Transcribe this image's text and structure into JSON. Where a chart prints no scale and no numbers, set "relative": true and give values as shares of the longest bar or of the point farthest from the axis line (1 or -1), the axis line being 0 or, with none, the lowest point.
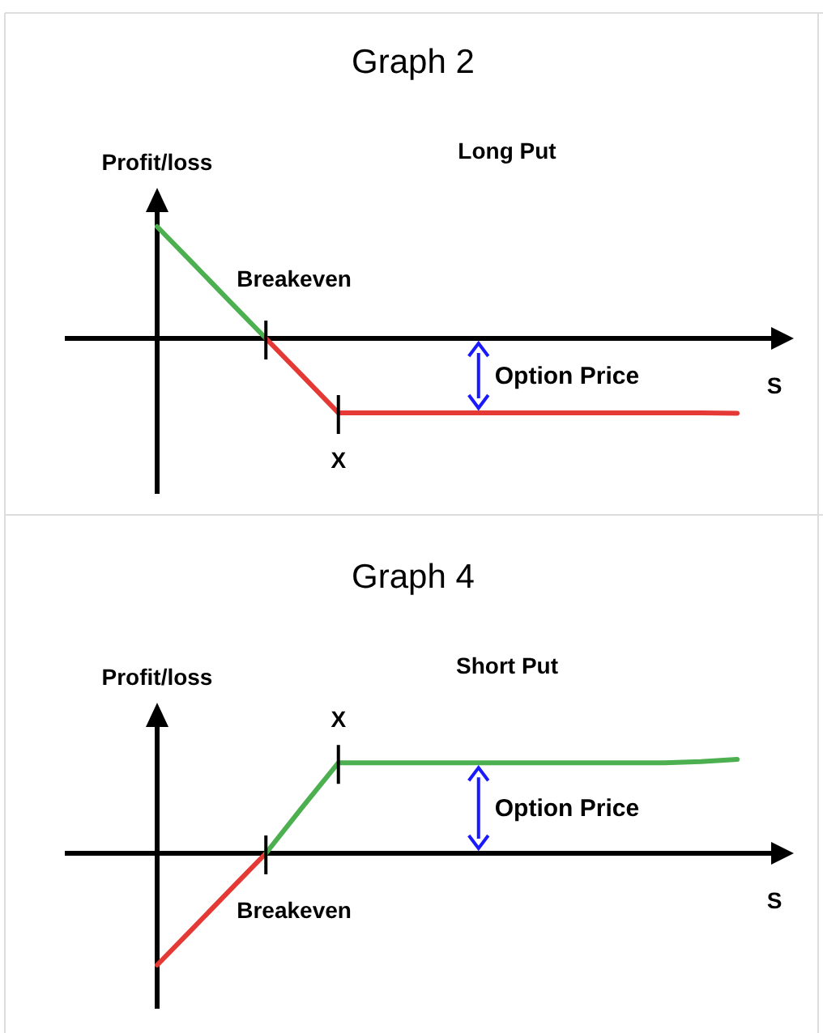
{
  "chart_data": [
    {
      "type": "line",
      "title": "Graph 2",
      "subtitle": "Long Put",
      "xlabel": "S",
      "ylabel": "Profit/loss",
      "relative": true,
      "categories": [
        null,
        null,
        null,
        null,
        null,
        null,
        null,
        null,
        null,
        null,
        null,
        null,
        null,
        null,
        null,
        null,
        null
      ],
      "series": [
        {
          "color": "#4caf50",
          "values": [
            1,
            0.667,
            0.333,
            0,
            null,
            null,
            null,
            null,
            null,
            null,
            null,
            null,
            null,
            null,
            null,
            null,
            null
          ]
        },
        {
          "color": "#e53935",
          "values": [
            null,
            null,
            null,
            0,
            -0.333,
            -0.667,
            -0.667,
            -0.667,
            -0.667,
            -0.667,
            -0.667,
            -0.667,
            -0.667,
            -0.667,
            -0.667,
            -0.667,
            -0.67
          ]
        }
      ],
      "annotations": [
        "Breakeven",
        "X",
        "Option Price"
      ]
    },
    {
      "type": "line",
      "title": "Graph 4",
      "subtitle": "Short Put",
      "xlabel": "S",
      "ylabel": "Profit/loss",
      "relative": true,
      "categories": [
        null,
        null,
        null,
        null,
        null,
        null,
        null,
        null,
        null,
        null,
        null,
        null,
        null,
        null,
        null,
        null,
        null
      ],
      "series": [
        {
          "color": "#e53935",
          "values": [
            -1,
            -0.667,
            -0.333,
            0,
            null,
            null,
            null,
            null,
            null,
            null,
            null,
            null,
            null,
            null,
            null,
            null,
            null
          ]
        },
        {
          "color": "#4caf50",
          "values": [
            null,
            null,
            null,
            0,
            0.41,
            0.81,
            0.81,
            0.81,
            0.81,
            0.81,
            0.81,
            0.81,
            0.81,
            0.81,
            0.81,
            0.82,
            0.84
          ]
        }
      ],
      "annotations": [
        "Breakeven",
        "X",
        "Option Price"
      ]
    }
  ]
}
